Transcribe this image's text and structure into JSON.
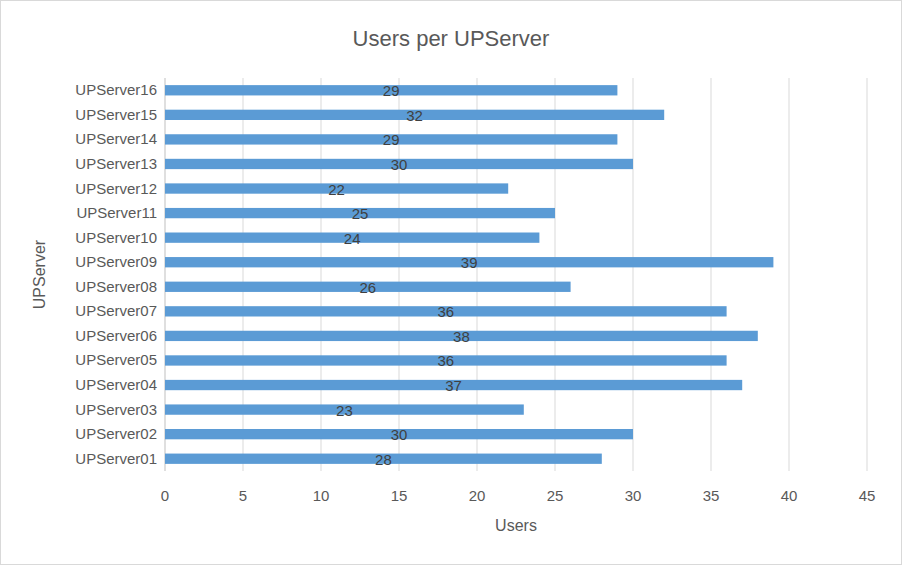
{
  "chart_data": {
    "type": "bar",
    "title": "Users per UPServer",
    "orientation": "horizontal",
    "xlabel": "Users",
    "ylabel": "UPServer",
    "categories": [
      "UPServer01",
      "UPServer02",
      "UPServer03",
      "UPServer04",
      "UPServer05",
      "UPServer06",
      "UPServer07",
      "UPServer08",
      "UPServer09",
      "UPServer10",
      "UPServer11",
      "UPServer12",
      "UPServer13",
      "UPServer14",
      "UPServer15",
      "UPServer16"
    ],
    "values": [
      28,
      30,
      23,
      37,
      36,
      38,
      36,
      26,
      39,
      24,
      25,
      22,
      30,
      29,
      32,
      29
    ],
    "color": "#5b9bd5",
    "xlim": [
      0,
      45
    ],
    "xticks": [
      0,
      5,
      10,
      15,
      20,
      25,
      30,
      35,
      40,
      45
    ],
    "grid": true,
    "data_labels": true
  }
}
